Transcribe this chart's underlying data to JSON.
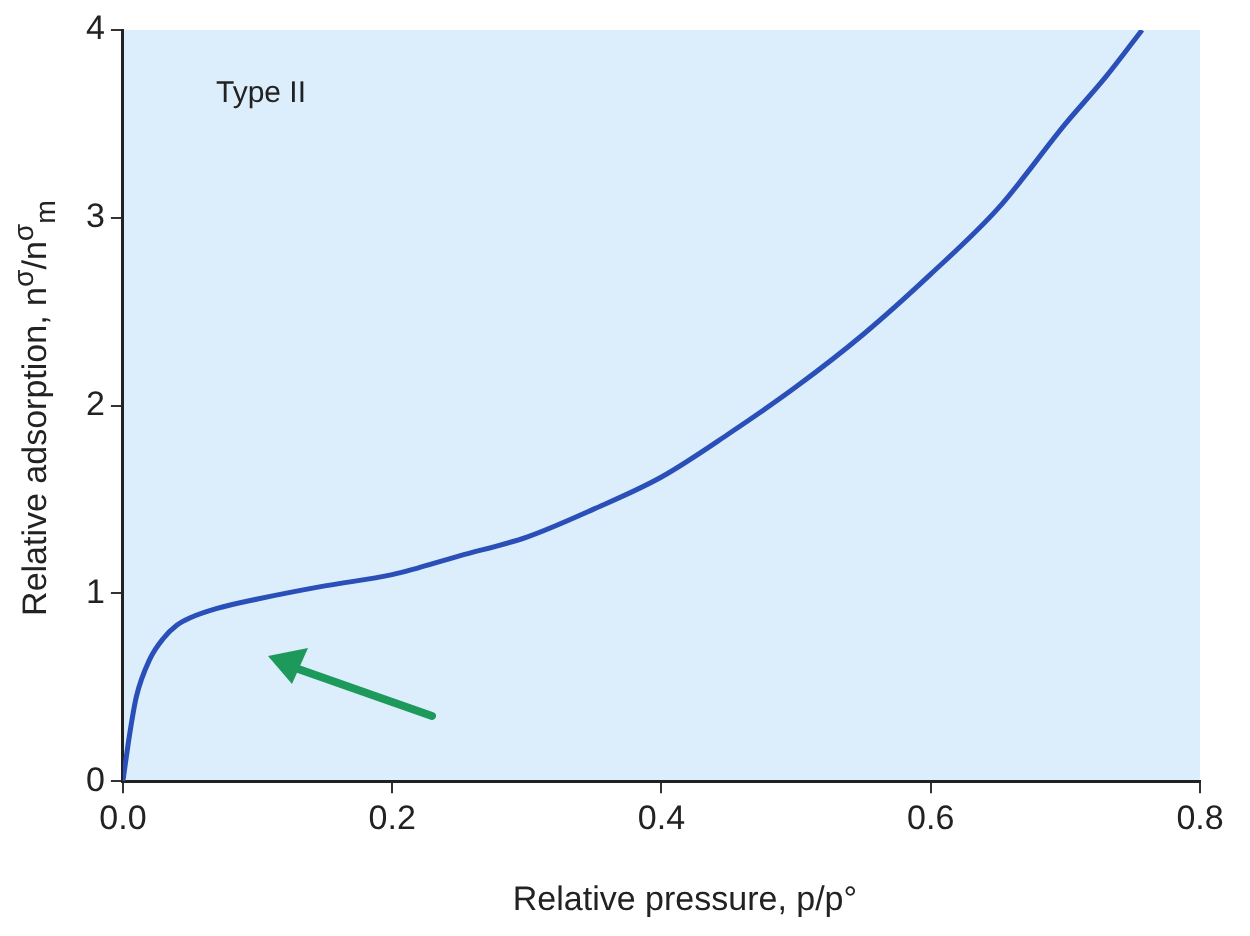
{
  "chart_data": {
    "type": "line",
    "xlabel": "Relative pressure, p/p°",
    "ylabel": "Relative adsorption, n$^{σ}$/n$^{σ}$$_{m}$",
    "annotations": [
      "Type II"
    ],
    "x": [
      0,
      0.005,
      0.01,
      0.02,
      0.03,
      0.04,
      0.05,
      0.07,
      0.1,
      0.15,
      0.2,
      0.25,
      0.3,
      0.35,
      0.4,
      0.45,
      0.5,
      0.55,
      0.6,
      0.65,
      0.7,
      0.73,
      0.757
    ],
    "series": [
      {
        "color": "#2a4fb8",
        "values": [
          0,
          0.25,
          0.45,
          0.65,
          0.76,
          0.83,
          0.87,
          0.92,
          0.97,
          1.04,
          1.1,
          1.2,
          1.3,
          1.45,
          1.62,
          1.85,
          2.1,
          2.38,
          2.7,
          3.05,
          3.5,
          3.75,
          4.0
        ]
      }
    ],
    "xlim": [
      0,
      0.8
    ],
    "ylim": [
      0,
      4
    ],
    "xticks": [
      {
        "value": 0,
        "label": "0.0"
      },
      0.2,
      0.4,
      0.6,
      0.8
    ],
    "yticks": [
      0,
      1,
      2,
      3,
      4
    ],
    "grid": false,
    "legend": false,
    "marker": "none",
    "line_style": "solid"
  }
}
